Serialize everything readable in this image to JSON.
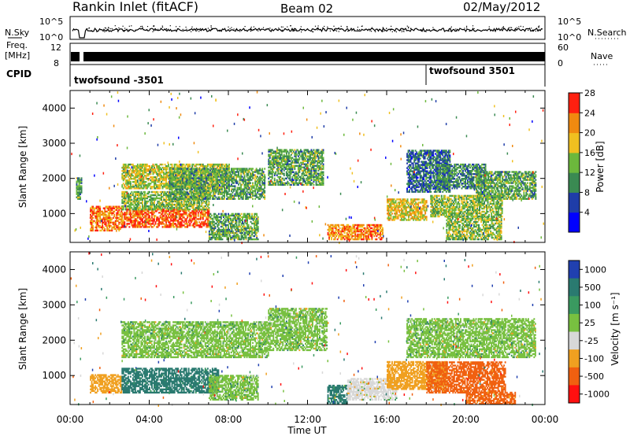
{
  "header": {
    "station": "Rankin Inlet (fitACF)",
    "beam": "Beam 02",
    "date": "02/May/2012"
  },
  "top_panels": {
    "nsky_label": "N.Sky",
    "nsky_ticks": [
      "10^5",
      "10^0"
    ],
    "nsearch_label": "N.Search",
    "nsearch_ticks": [
      "10^5",
      "10^0"
    ],
    "freq_label_1": "Freq.",
    "freq_label_2": "[MHz]",
    "freq_ticks": [
      "12",
      "8"
    ],
    "nave_label": "Nave",
    "nave_ticks": [
      "60",
      "0"
    ],
    "cpid_label": "CPID",
    "cpid_segments": [
      {
        "name": "twofsound -3501",
        "start_hour": 0.0
      },
      {
        "name": "twofsound 3501",
        "start_hour": 18.0
      }
    ]
  },
  "chart_data": [
    {
      "type": "heatmap",
      "title": "",
      "xlabel": "",
      "ylabel": "Slant Range [km]",
      "xlim": [
        0,
        24
      ],
      "ylim": [
        180,
        4500
      ],
      "yticks": [
        1000,
        2000,
        3000,
        4000
      ],
      "colorbar": {
        "label": "Power [dB]",
        "ticks": [
          "4",
          "8",
          "12",
          "16",
          "20",
          "24",
          "28"
        ],
        "colors": [
          "#0000ff",
          "#1f3da8",
          "#3a8a52",
          "#6cb83c",
          "#f0c020",
          "#f08a10",
          "#ff2010"
        ]
      },
      "echo_regions": [
        {
          "x": [
            0.3,
            0.55
          ],
          "y": [
            1400,
            2000
          ],
          "level": 14
        },
        {
          "x": [
            1.0,
            2.6
          ],
          "y": [
            500,
            1200
          ],
          "level": 24
        },
        {
          "x": [
            2.6,
            7.0
          ],
          "y": [
            600,
            1100
          ],
          "level": 26
        },
        {
          "x": [
            2.6,
            7.0
          ],
          "y": [
            1100,
            1600
          ],
          "level": 16
        },
        {
          "x": [
            2.6,
            8.0
          ],
          "y": [
            1700,
            2400
          ],
          "level": 18
        },
        {
          "x": [
            5.0,
            9.8
          ],
          "y": [
            1400,
            2300
          ],
          "level": 14
        },
        {
          "x": [
            7.0,
            9.5
          ],
          "y": [
            250,
            1000
          ],
          "level": 14
        },
        {
          "x": [
            10.0,
            12.8
          ],
          "y": [
            1800,
            2800
          ],
          "level": 14
        },
        {
          "x": [
            13.0,
            15.8
          ],
          "y": [
            250,
            700
          ],
          "level": 24
        },
        {
          "x": [
            16.0,
            18.0
          ],
          "y": [
            800,
            1400
          ],
          "level": 20
        },
        {
          "x": [
            17.0,
            19.2
          ],
          "y": [
            1600,
            2800
          ],
          "level": 10
        },
        {
          "x": [
            18.2,
            21.8
          ],
          "y": [
            900,
            1500
          ],
          "level": 16
        },
        {
          "x": [
            18.5,
            21.0
          ],
          "y": [
            1700,
            2400
          ],
          "level": 12
        },
        {
          "x": [
            20.5,
            23.5
          ],
          "y": [
            1400,
            2200
          ],
          "level": 14
        },
        {
          "x": [
            19.0,
            21.8
          ],
          "y": [
            250,
            900
          ],
          "level": 16
        }
      ]
    },
    {
      "type": "heatmap",
      "title": "",
      "xlabel": "Time UT",
      "ylabel": "Slant Range [km]",
      "xlim": [
        0,
        24
      ],
      "ylim": [
        180,
        4500
      ],
      "yticks": [
        1000,
        2000,
        3000,
        4000
      ],
      "xticks": [
        "00:00",
        "04:00",
        "08:00",
        "12:00",
        "16:00",
        "20:00",
        "00:00"
      ],
      "colorbar": {
        "label": "Velocity [m s⁻¹]",
        "ticks": [
          "1000",
          "500",
          "100",
          "25",
          "-25",
          "-100",
          "-500",
          "-1000"
        ],
        "colors": [
          "#2040b0",
          "#2a7a70",
          "#3a9a60",
          "#78c040",
          "#d8d8d8",
          "#f0a020",
          "#f06010",
          "#ff1010"
        ]
      },
      "echo_regions": [
        {
          "x": [
            1.0,
            2.6
          ],
          "y": [
            500,
            1000
          ],
          "level": -300
        },
        {
          "x": [
            2.6,
            7.5
          ],
          "y": [
            500,
            1200
          ],
          "level": 200
        },
        {
          "x": [
            2.6,
            10.0
          ],
          "y": [
            1500,
            2500
          ],
          "level": 0
        },
        {
          "x": [
            10.0,
            13.0
          ],
          "y": [
            1700,
            2900
          ],
          "level": 0
        },
        {
          "x": [
            7.0,
            9.5
          ],
          "y": [
            300,
            1000
          ],
          "level": 0
        },
        {
          "x": [
            13.0,
            14.0
          ],
          "y": [
            200,
            700
          ],
          "level": 150
        },
        {
          "x": [
            14.0,
            16.5
          ],
          "y": [
            300,
            900
          ],
          "level": -80
        },
        {
          "x": [
            16.0,
            19.0
          ],
          "y": [
            600,
            1400
          ],
          "level": -300
        },
        {
          "x": [
            18.0,
            22.0
          ],
          "y": [
            500,
            1400
          ],
          "level": -600
        },
        {
          "x": [
            17.0,
            23.5
          ],
          "y": [
            1500,
            2600
          ],
          "level": 0
        },
        {
          "x": [
            20.0,
            22.5
          ],
          "y": [
            180,
            500
          ],
          "level": -500
        }
      ]
    }
  ]
}
